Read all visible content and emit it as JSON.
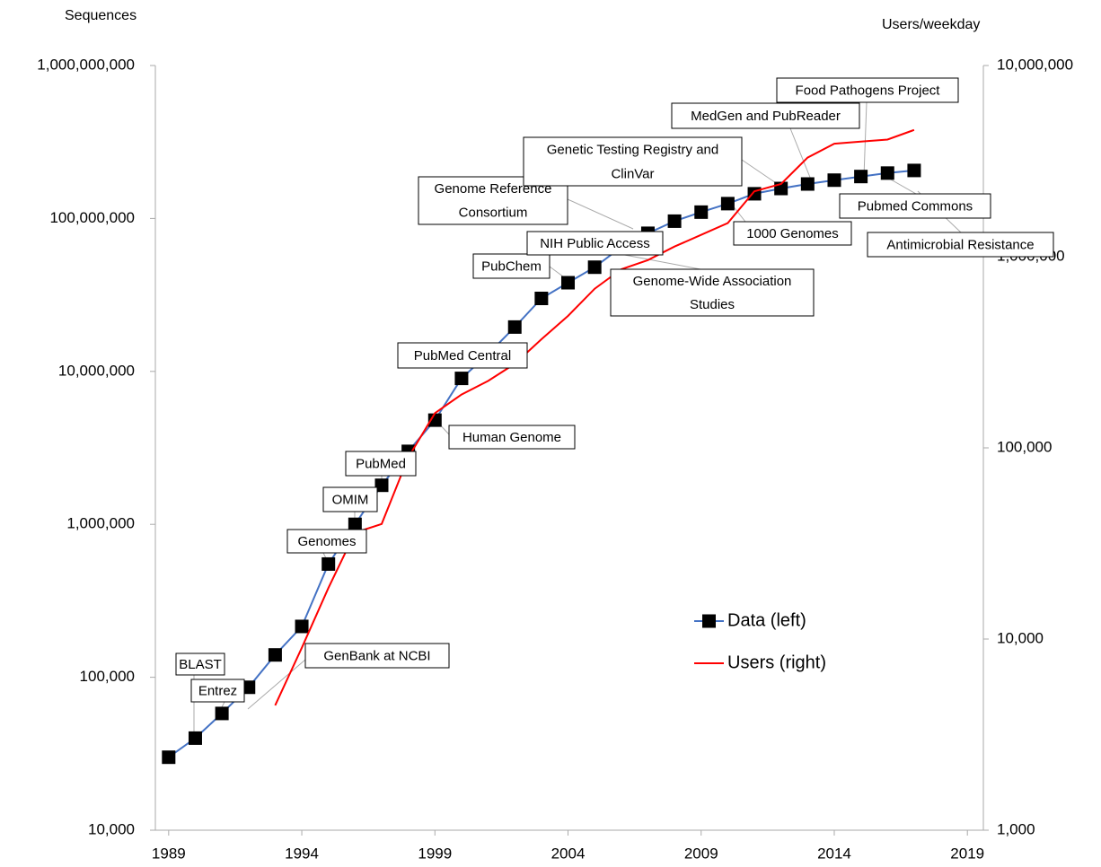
{
  "chart_data": {
    "type": "line",
    "y_label": "Sequences",
    "y2_label": "Users/weekday",
    "log_y": true,
    "xlim": [
      1988.5,
      2019.6
    ],
    "xticks": [
      1989,
      1994,
      1999,
      2004,
      2009,
      2014,
      2019
    ],
    "ylim": [
      10000,
      1000000000
    ],
    "yticks": [
      {
        "value": 10000,
        "label": "10,000"
      },
      {
        "value": 100000,
        "label": "100,000"
      },
      {
        "value": 1000000,
        "label": "1,000,000"
      },
      {
        "value": 10000000,
        "label": "10,000,000"
      },
      {
        "value": 100000000,
        "label": "100,000,000"
      },
      {
        "value": 1000000000,
        "label": "1,000,000,000"
      }
    ],
    "y2lim": [
      1000,
      10000000
    ],
    "y2ticks": [
      {
        "value": 1000,
        "label": "1,000"
      },
      {
        "value": 10000,
        "label": "10,000"
      },
      {
        "value": 100000,
        "label": "100,000"
      },
      {
        "value": 1000000,
        "label": "1,000,000"
      },
      {
        "value": 10000000,
        "label": "10,000,000"
      }
    ],
    "series": [
      {
        "name": "Data (left)",
        "color": "#4472c4",
        "marker": "square",
        "marker_color": "#000000",
        "x": [
          1989,
          1990,
          1991,
          1992,
          1993,
          1994,
          1995,
          1996,
          1997,
          1998,
          1999,
          2000,
          2001,
          2002,
          2003,
          2004,
          2005,
          2006,
          2007,
          2008,
          2009,
          2010,
          2011,
          2012,
          2013,
          2014,
          2015,
          2016,
          2017
        ],
        "values": [
          30000,
          40000,
          58000,
          86000,
          140000,
          215000,
          550000,
          1000000,
          1800000,
          3000000,
          4800000,
          9000000,
          13000000,
          19500000,
          30000000,
          38000000,
          48000000,
          65000000,
          80000000,
          96000000,
          110000000,
          125000000,
          145000000,
          157000000,
          168000000,
          178000000,
          188000000,
          198000000,
          206000000
        ]
      },
      {
        "name": "Users (right)",
        "color": "#ff0000",
        "axis": "y2",
        "x": [
          1993,
          1994,
          1995,
          1996,
          1997,
          1998,
          1999,
          2000,
          2001,
          2002,
          2003,
          2004,
          2005,
          2006,
          2007,
          2008,
          2009,
          2010,
          2011,
          2012,
          2013,
          2014,
          2015,
          2016,
          2017
        ],
        "values": [
          4500,
          9000,
          18500,
          36000,
          40000,
          89000,
          152000,
          190000,
          224000,
          275000,
          370000,
          490000,
          680000,
          860000,
          960000,
          1130000,
          1300000,
          1500000,
          2200000,
          2400000,
          3300000,
          3900000,
          4000000,
          4100000,
          4600000
        ]
      }
    ],
    "annotations": [
      [
        "BLAST"
      ],
      [
        "Entrez"
      ],
      [
        "GenBank at NCBI"
      ],
      [
        "Genomes"
      ],
      [
        "OMIM"
      ],
      [
        "PubMed"
      ],
      [
        "Human Genome"
      ],
      [
        "PubMed Central"
      ],
      [
        "PubChem"
      ],
      [
        "NIH Public Access"
      ],
      [
        "Genome Reference",
        "Consortium"
      ],
      [
        "Genome-Wide Association",
        "Studies"
      ],
      [
        "Genetic Testing Registry and",
        "ClinVar"
      ],
      [
        "MedGen and PubReader"
      ],
      [
        "Food Pathogens Project"
      ],
      [
        "1000 Genomes"
      ],
      [
        "Pubmed Commons"
      ],
      [
        "Antimicrobial Resistance"
      ]
    ]
  }
}
